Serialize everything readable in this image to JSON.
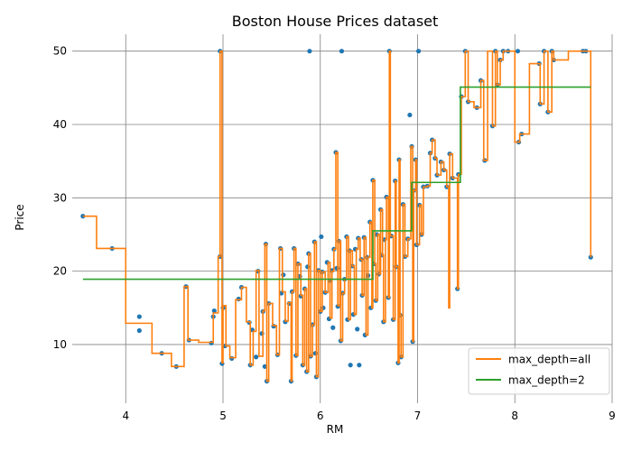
{
  "chart_data": {
    "type": "scatter",
    "title": "Boston House Prices dataset",
    "xlabel": "RM",
    "ylabel": "Price",
    "xlim": [
      3.45,
      9.0
    ],
    "ylim": [
      2.0,
      52.3
    ],
    "xticks": [
      4,
      5,
      6,
      7,
      8,
      9
    ],
    "yticks": [
      10,
      20,
      30,
      40,
      50
    ],
    "grid": true,
    "legend_position": "lower-right",
    "point_color": "#1f77b4",
    "points": [
      [
        3.56,
        27.5
      ],
      [
        3.86,
        23.1
      ],
      [
        4.14,
        13.8
      ],
      [
        4.14,
        11.9
      ],
      [
        4.37,
        8.8
      ],
      [
        4.52,
        7.0
      ],
      [
        4.62,
        17.9
      ],
      [
        4.65,
        10.6
      ],
      [
        4.88,
        10.2
      ],
      [
        4.9,
        13.8
      ],
      [
        4.91,
        14.6
      ],
      [
        4.97,
        50.0
      ],
      [
        4.97,
        22.0
      ],
      [
        4.99,
        7.4
      ],
      [
        5.0,
        15.0
      ],
      [
        5.02,
        9.8
      ],
      [
        5.09,
        8.1
      ],
      [
        5.16,
        16.2
      ],
      [
        5.19,
        17.8
      ],
      [
        5.27,
        13.0
      ],
      [
        5.28,
        7.2
      ],
      [
        5.3,
        12.0
      ],
      [
        5.34,
        8.3
      ],
      [
        5.36,
        20.0
      ],
      [
        5.4,
        11.5
      ],
      [
        5.41,
        14.5
      ],
      [
        5.43,
        7.0
      ],
      [
        5.44,
        23.7
      ],
      [
        5.45,
        5.0
      ],
      [
        5.47,
        15.6
      ],
      [
        5.52,
        12.5
      ],
      [
        5.56,
        8.6
      ],
      [
        5.59,
        23.1
      ],
      [
        5.6,
        17.0
      ],
      [
        5.62,
        19.5
      ],
      [
        5.64,
        13.1
      ],
      [
        5.68,
        15.6
      ],
      [
        5.7,
        5.0
      ],
      [
        5.71,
        17.2
      ],
      [
        5.73,
        23.1
      ],
      [
        5.75,
        8.5
      ],
      [
        5.77,
        21.0
      ],
      [
        5.79,
        19.3
      ],
      [
        5.8,
        16.6
      ],
      [
        5.82,
        7.2
      ],
      [
        5.84,
        17.6
      ],
      [
        5.86,
        6.3
      ],
      [
        5.87,
        20.6
      ],
      [
        5.88,
        22.4
      ],
      [
        5.89,
        50.0
      ],
      [
        5.9,
        8.4
      ],
      [
        5.92,
        12.7
      ],
      [
        5.94,
        24.0
      ],
      [
        5.95,
        8.8
      ],
      [
        5.96,
        5.6
      ],
      [
        5.98,
        20.1
      ],
      [
        6.0,
        14.5
      ],
      [
        6.01,
        24.7
      ],
      [
        6.02,
        19.9
      ],
      [
        6.03,
        15.0
      ],
      [
        6.05,
        17.1
      ],
      [
        6.07,
        21.2
      ],
      [
        6.09,
        13.5
      ],
      [
        6.1,
        18.7
      ],
      [
        6.12,
        20.1
      ],
      [
        6.13,
        12.3
      ],
      [
        6.14,
        23.0
      ],
      [
        6.16,
        36.2
      ],
      [
        6.17,
        20.4
      ],
      [
        6.18,
        15.2
      ],
      [
        6.19,
        24.1
      ],
      [
        6.21,
        10.5
      ],
      [
        6.22,
        50.0
      ],
      [
        6.23,
        17.0
      ],
      [
        6.25,
        18.9
      ],
      [
        6.27,
        24.7
      ],
      [
        6.28,
        13.4
      ],
      [
        6.3,
        22.8
      ],
      [
        6.31,
        7.2
      ],
      [
        6.33,
        20.7
      ],
      [
        6.34,
        14.1
      ],
      [
        6.36,
        23.0
      ],
      [
        6.38,
        12.1
      ],
      [
        6.39,
        24.5
      ],
      [
        6.4,
        7.2
      ],
      [
        6.42,
        21.6
      ],
      [
        6.43,
        16.7
      ],
      [
        6.45,
        24.6
      ],
      [
        6.46,
        11.3
      ],
      [
        6.48,
        21.9
      ],
      [
        6.49,
        19.4
      ],
      [
        6.51,
        26.7
      ],
      [
        6.52,
        15.0
      ],
      [
        6.54,
        32.4
      ],
      [
        6.55,
        21.0
      ],
      [
        6.57,
        16.0
      ],
      [
        6.58,
        25.0
      ],
      [
        6.6,
        19.6
      ],
      [
        6.62,
        28.4
      ],
      [
        6.63,
        22.2
      ],
      [
        6.65,
        13.1
      ],
      [
        6.66,
        24.3
      ],
      [
        6.68,
        30.1
      ],
      [
        6.7,
        16.4
      ],
      [
        6.71,
        50.0
      ],
      [
        6.73,
        24.8
      ],
      [
        6.75,
        13.4
      ],
      [
        6.77,
        32.3
      ],
      [
        6.78,
        20.6
      ],
      [
        6.8,
        7.5
      ],
      [
        6.81,
        35.2
      ],
      [
        6.82,
        14.0
      ],
      [
        6.83,
        8.3
      ],
      [
        6.85,
        29.1
      ],
      [
        6.87,
        22.0
      ],
      [
        6.9,
        24.4
      ],
      [
        6.92,
        41.3
      ],
      [
        6.94,
        37.0
      ],
      [
        6.95,
        10.4
      ],
      [
        6.96,
        31.0
      ],
      [
        6.98,
        35.2
      ],
      [
        6.99,
        23.6
      ],
      [
        7.01,
        50.0
      ],
      [
        7.02,
        29.0
      ],
      [
        7.04,
        25.0
      ],
      [
        7.06,
        31.5
      ],
      [
        7.1,
        31.6
      ],
      [
        7.13,
        36.1
      ],
      [
        7.15,
        37.9
      ],
      [
        7.18,
        35.4
      ],
      [
        7.2,
        33.1
      ],
      [
        7.24,
        34.9
      ],
      [
        7.27,
        33.8
      ],
      [
        7.3,
        31.5
      ],
      [
        7.33,
        36.0
      ],
      [
        7.36,
        32.7
      ],
      [
        7.41,
        17.6
      ],
      [
        7.42,
        33.2
      ],
      [
        7.45,
        43.8
      ],
      [
        7.49,
        50.0
      ],
      [
        7.52,
        43.1
      ],
      [
        7.61,
        42.3
      ],
      [
        7.65,
        46.0
      ],
      [
        7.69,
        35.1
      ],
      [
        7.77,
        39.8
      ],
      [
        7.8,
        50.0
      ],
      [
        7.82,
        45.4
      ],
      [
        7.85,
        48.8
      ],
      [
        7.88,
        50.0
      ],
      [
        7.93,
        50.0
      ],
      [
        8.03,
        50.0
      ],
      [
        8.04,
        37.6
      ],
      [
        8.07,
        38.7
      ],
      [
        8.25,
        48.3
      ],
      [
        8.26,
        42.8
      ],
      [
        8.3,
        50.0
      ],
      [
        8.34,
        41.7
      ],
      [
        8.38,
        50.0
      ],
      [
        8.4,
        48.8
      ],
      [
        8.7,
        50.0
      ],
      [
        8.73,
        50.0
      ],
      [
        8.78,
        21.9
      ]
    ],
    "series": [
      {
        "name": "max_depth=all",
        "color": "#ff7f0e",
        "steps": [
          [
            3.56,
            27.5
          ],
          [
            3.7,
            23.1
          ],
          [
            4.0,
            12.9
          ],
          [
            4.27,
            8.8
          ],
          [
            4.47,
            7.0
          ],
          [
            4.6,
            17.9
          ],
          [
            4.64,
            10.6
          ],
          [
            4.75,
            10.3
          ],
          [
            4.9,
            14.3
          ],
          [
            4.95,
            22.0
          ],
          [
            4.97,
            50.0
          ],
          [
            4.99,
            7.5
          ],
          [
            5.0,
            15.3
          ],
          [
            5.03,
            9.8
          ],
          [
            5.07,
            8.2
          ],
          [
            5.13,
            16.1
          ],
          [
            5.19,
            17.8
          ],
          [
            5.24,
            13.1
          ],
          [
            5.28,
            7.2
          ],
          [
            5.31,
            11.8
          ],
          [
            5.34,
            20.1
          ],
          [
            5.37,
            8.4
          ],
          [
            5.41,
            14.6
          ],
          [
            5.43,
            23.7
          ],
          [
            5.45,
            5.0
          ],
          [
            5.47,
            15.6
          ],
          [
            5.51,
            12.6
          ],
          [
            5.55,
            8.6
          ],
          [
            5.58,
            23.1
          ],
          [
            5.61,
            17.2
          ],
          [
            5.64,
            13.2
          ],
          [
            5.67,
            15.7
          ],
          [
            5.7,
            5.0
          ],
          [
            5.71,
            17.2
          ],
          [
            5.73,
            23.1
          ],
          [
            5.75,
            8.5
          ],
          [
            5.77,
            21.0
          ],
          [
            5.8,
            16.7
          ],
          [
            5.82,
            7.2
          ],
          [
            5.84,
            17.6
          ],
          [
            5.86,
            6.3
          ],
          [
            5.88,
            22.4
          ],
          [
            5.9,
            8.4
          ],
          [
            5.92,
            12.7
          ],
          [
            5.94,
            24.0
          ],
          [
            5.96,
            5.6
          ],
          [
            5.98,
            20.1
          ],
          [
            6.0,
            14.5
          ],
          [
            6.02,
            19.9
          ],
          [
            6.05,
            17.1
          ],
          [
            6.08,
            21.2
          ],
          [
            6.1,
            13.6
          ],
          [
            6.12,
            20.0
          ],
          [
            6.14,
            23.0
          ],
          [
            6.16,
            36.2
          ],
          [
            6.18,
            15.3
          ],
          [
            6.2,
            24.1
          ],
          [
            6.21,
            10.5
          ],
          [
            6.23,
            17.0
          ],
          [
            6.25,
            18.9
          ],
          [
            6.27,
            24.7
          ],
          [
            6.29,
            13.4
          ],
          [
            6.31,
            22.8
          ],
          [
            6.33,
            20.7
          ],
          [
            6.35,
            14.1
          ],
          [
            6.37,
            23.0
          ],
          [
            6.39,
            24.5
          ],
          [
            6.41,
            21.6
          ],
          [
            6.43,
            16.7
          ],
          [
            6.45,
            24.6
          ],
          [
            6.47,
            11.3
          ],
          [
            6.49,
            21.9
          ],
          [
            6.51,
            26.7
          ],
          [
            6.53,
            15.0
          ],
          [
            6.54,
            32.4
          ],
          [
            6.56,
            21.0
          ],
          [
            6.57,
            16.0
          ],
          [
            6.59,
            25.0
          ],
          [
            6.61,
            19.6
          ],
          [
            6.62,
            28.4
          ],
          [
            6.64,
            22.2
          ],
          [
            6.65,
            13.1
          ],
          [
            6.67,
            24.3
          ],
          [
            6.68,
            30.1
          ],
          [
            6.7,
            16.4
          ],
          [
            6.71,
            50.0
          ],
          [
            6.72,
            24.8
          ],
          [
            6.75,
            13.4
          ],
          [
            6.77,
            32.3
          ],
          [
            6.78,
            20.6
          ],
          [
            6.8,
            7.5
          ],
          [
            6.81,
            35.2
          ],
          [
            6.82,
            14.0
          ],
          [
            6.83,
            8.3
          ],
          [
            6.85,
            29.1
          ],
          [
            6.87,
            22.0
          ],
          [
            6.9,
            24.4
          ],
          [
            6.93,
            37.0
          ],
          [
            6.95,
            10.4
          ],
          [
            6.96,
            31.0
          ],
          [
            6.98,
            35.2
          ],
          [
            6.99,
            23.6
          ],
          [
            7.02,
            29.0
          ],
          [
            7.04,
            25.0
          ],
          [
            7.06,
            31.5
          ],
          [
            7.1,
            31.6
          ],
          [
            7.13,
            36.1
          ],
          [
            7.15,
            37.9
          ],
          [
            7.18,
            35.4
          ],
          [
            7.2,
            33.1
          ],
          [
            7.24,
            34.9
          ],
          [
            7.27,
            33.8
          ],
          [
            7.3,
            31.5
          ],
          [
            7.32,
            15.0
          ],
          [
            7.33,
            36.0
          ],
          [
            7.36,
            32.7
          ],
          [
            7.41,
            17.6
          ],
          [
            7.42,
            33.2
          ],
          [
            7.45,
            43.8
          ],
          [
            7.49,
            50.0
          ],
          [
            7.52,
            43.1
          ],
          [
            7.58,
            42.3
          ],
          [
            7.65,
            46.0
          ],
          [
            7.68,
            35.1
          ],
          [
            7.72,
            50.0
          ],
          [
            7.77,
            39.8
          ],
          [
            7.8,
            50.0
          ],
          [
            7.82,
            45.4
          ],
          [
            7.85,
            48.8
          ],
          [
            7.88,
            50.0
          ],
          [
            8.0,
            37.6
          ],
          [
            8.05,
            38.7
          ],
          [
            8.15,
            48.3
          ],
          [
            8.26,
            42.8
          ],
          [
            8.3,
            50.0
          ],
          [
            8.34,
            41.7
          ],
          [
            8.38,
            50.0
          ],
          [
            8.4,
            48.8
          ],
          [
            8.55,
            50.0
          ],
          [
            8.75,
            50.0
          ],
          [
            8.78,
            21.9
          ]
        ]
      },
      {
        "name": "max_depth=2",
        "color": "#2ca02c",
        "steps": [
          [
            3.56,
            18.9
          ],
          [
            6.54,
            25.5
          ],
          [
            6.94,
            32.1
          ],
          [
            7.44,
            45.1
          ],
          [
            8.78,
            45.1
          ]
        ]
      }
    ]
  }
}
